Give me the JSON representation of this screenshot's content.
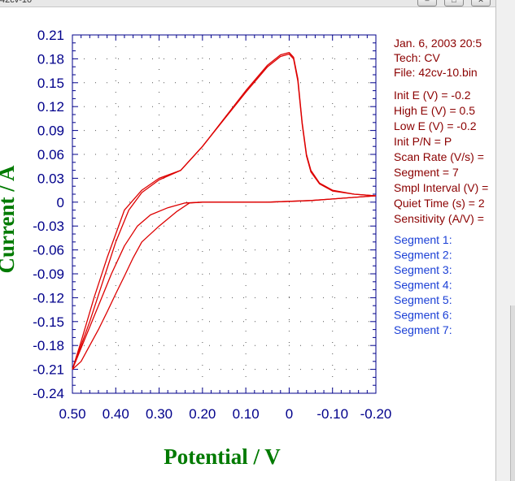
{
  "window": {
    "title": "42cv-10",
    "buttons": [
      "minimize",
      "maximize",
      "close"
    ]
  },
  "info_panel": {
    "header_lines": [
      "Jan. 6, 2003   20:5",
      "Tech: CV",
      "File: 42cv-10.bin"
    ],
    "param_lines": [
      "Init E (V) = -0.2",
      "High E (V) = 0.5",
      "Low E (V) = -0.2",
      "Init P/N = P",
      "Scan Rate (V/s) =",
      "Segment = 7",
      "Smpl Interval (V) =",
      "Quiet Time (s) = 2",
      "Sensitivity (A/V) ="
    ],
    "segment_lines": [
      "Segment 1:",
      "Segment 2:",
      "Segment 3:",
      "Segment 4:",
      "Segment 5:",
      "Segment 6:",
      "Segment 7:"
    ],
    "colors": {
      "header": "#8b0000",
      "segments": "#1a3fd6"
    }
  },
  "chart_data": {
    "type": "line",
    "xlabel": "Potential / V",
    "ylabel": "Current / A",
    "xlim": [
      0.5,
      -0.2
    ],
    "ylim": [
      -0.24,
      0.21
    ],
    "xticks": [
      "0.50",
      "0.40",
      "0.30",
      "0.20",
      "0.10",
      "0",
      "-0.10",
      "-0.20"
    ],
    "yticks": [
      "0.21",
      "0.18",
      "0.15",
      "0.12",
      "0.09",
      "0.06",
      "0.03",
      "0",
      "-0.03",
      "-0.06",
      "-0.09",
      "-0.12",
      "-0.15",
      "-0.18",
      "-0.21",
      "-0.24"
    ],
    "grid": true,
    "line_color": "#dd0000",
    "series": [
      {
        "x": [
          0.5,
          0.48,
          0.46,
          0.44,
          0.42,
          0.4,
          0.38,
          0.36,
          0.34,
          0.3,
          0.26,
          0.23,
          0.2,
          0.15,
          0.1,
          0.05,
          0.0,
          -0.05,
          -0.1,
          -0.15,
          -0.2
        ],
        "y": [
          -0.21,
          -0.2,
          -0.18,
          -0.16,
          -0.138,
          -0.115,
          -0.093,
          -0.07,
          -0.05,
          -0.03,
          -0.012,
          -0.001,
          0.0,
          0.0,
          0.0,
          0.0,
          0.001,
          0.002,
          0.004,
          0.006,
          0.008
        ]
      },
      {
        "x": [
          -0.2,
          -0.15,
          -0.1,
          -0.07,
          -0.05,
          -0.04,
          -0.03,
          -0.02,
          -0.01,
          0.0,
          0.02,
          0.05,
          0.1,
          0.15,
          0.2,
          0.25,
          0.3,
          0.34,
          0.38,
          0.42,
          0.45,
          0.48,
          0.5
        ],
        "y": [
          0.008,
          0.01,
          0.015,
          0.024,
          0.04,
          0.06,
          0.1,
          0.155,
          0.182,
          0.188,
          0.185,
          0.172,
          0.14,
          0.105,
          0.07,
          0.04,
          0.03,
          0.015,
          -0.01,
          -0.07,
          -0.12,
          -0.175,
          -0.21
        ]
      },
      {
        "x": [
          0.5,
          0.47,
          0.44,
          0.41,
          0.38,
          0.35,
          0.32,
          0.28,
          0.24,
          0.2,
          0.15,
          0.1,
          0.05,
          0.0,
          -0.05,
          -0.1,
          -0.15,
          -0.2
        ],
        "y": [
          -0.21,
          -0.17,
          -0.13,
          -0.09,
          -0.055,
          -0.03,
          -0.016,
          -0.007,
          -0.001,
          0.0,
          0.0,
          0.0,
          0.0,
          0.001,
          0.002,
          0.004,
          0.006,
          0.008
        ]
      },
      {
        "x": [
          -0.2,
          -0.15,
          -0.1,
          -0.07,
          -0.05,
          -0.04,
          -0.03,
          -0.02,
          -0.01,
          0.0,
          0.02,
          0.05,
          0.1,
          0.15,
          0.2,
          0.25,
          0.3,
          0.34,
          0.37,
          0.4,
          0.43,
          0.46,
          0.5
        ],
        "y": [
          0.008,
          0.01,
          0.014,
          0.023,
          0.038,
          0.058,
          0.098,
          0.152,
          0.18,
          0.186,
          0.183,
          0.17,
          0.138,
          0.104,
          0.07,
          0.04,
          0.028,
          0.012,
          -0.01,
          -0.05,
          -0.1,
          -0.15,
          -0.21
        ]
      }
    ]
  }
}
